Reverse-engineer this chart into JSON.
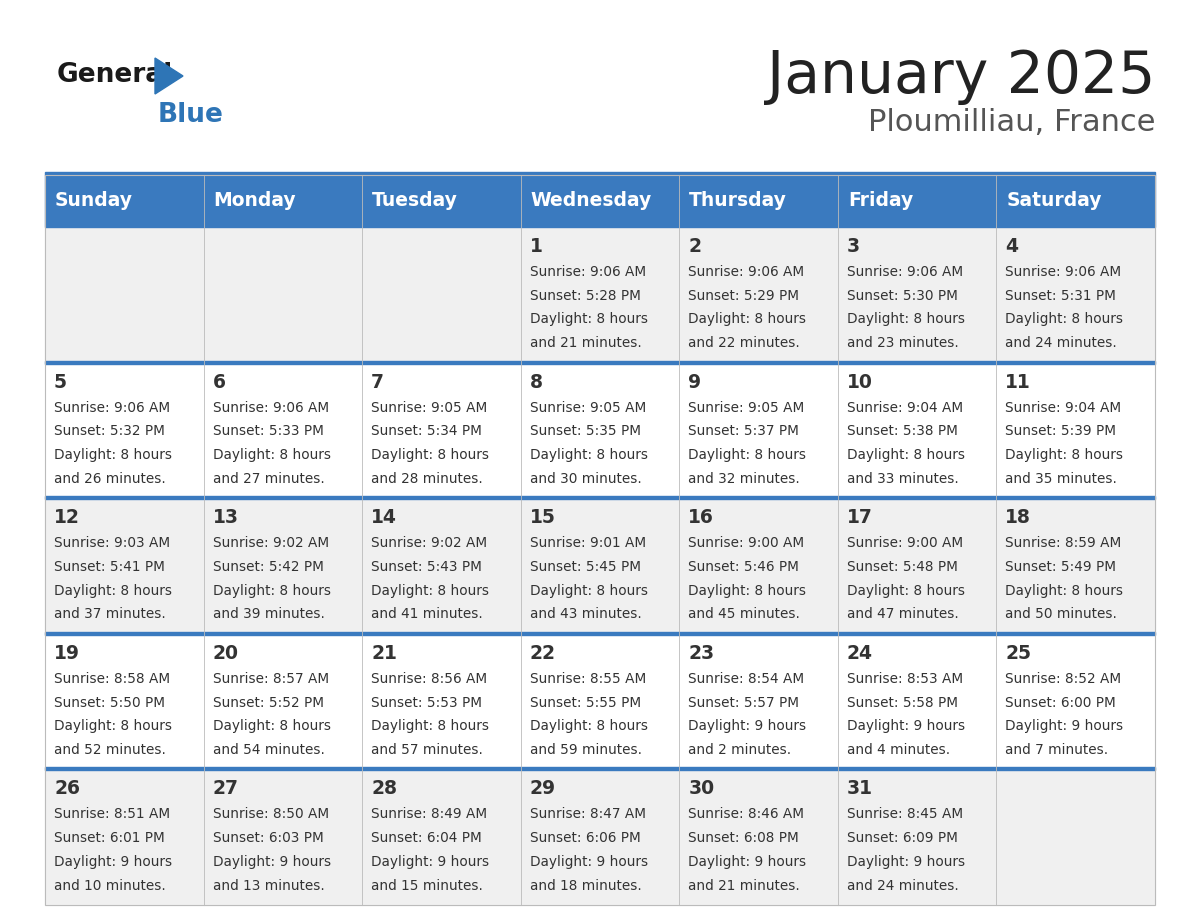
{
  "title": "January 2025",
  "subtitle": "Ploumilliau, France",
  "days_of_week": [
    "Sunday",
    "Monday",
    "Tuesday",
    "Wednesday",
    "Thursday",
    "Friday",
    "Saturday"
  ],
  "header_bg": "#3a7abf",
  "header_text": "#ffffff",
  "row_bg_light": "#f0f0f0",
  "row_bg_white": "#ffffff",
  "cell_text": "#333333",
  "title_color": "#222222",
  "subtitle_color": "#555555",
  "divider_color": "#3a7abf",
  "calendar_data": [
    [
      {
        "day": null
      },
      {
        "day": null
      },
      {
        "day": null
      },
      {
        "day": 1,
        "sunrise": "9:06 AM",
        "sunset": "5:28 PM",
        "daylight_h": "8 hours",
        "daylight_m": "and 21 minutes."
      },
      {
        "day": 2,
        "sunrise": "9:06 AM",
        "sunset": "5:29 PM",
        "daylight_h": "8 hours",
        "daylight_m": "and 22 minutes."
      },
      {
        "day": 3,
        "sunrise": "9:06 AM",
        "sunset": "5:30 PM",
        "daylight_h": "8 hours",
        "daylight_m": "and 23 minutes."
      },
      {
        "day": 4,
        "sunrise": "9:06 AM",
        "sunset": "5:31 PM",
        "daylight_h": "8 hours",
        "daylight_m": "and 24 minutes."
      }
    ],
    [
      {
        "day": 5,
        "sunrise": "9:06 AM",
        "sunset": "5:32 PM",
        "daylight_h": "8 hours",
        "daylight_m": "and 26 minutes."
      },
      {
        "day": 6,
        "sunrise": "9:06 AM",
        "sunset": "5:33 PM",
        "daylight_h": "8 hours",
        "daylight_m": "and 27 minutes."
      },
      {
        "day": 7,
        "sunrise": "9:05 AM",
        "sunset": "5:34 PM",
        "daylight_h": "8 hours",
        "daylight_m": "and 28 minutes."
      },
      {
        "day": 8,
        "sunrise": "9:05 AM",
        "sunset": "5:35 PM",
        "daylight_h": "8 hours",
        "daylight_m": "and 30 minutes."
      },
      {
        "day": 9,
        "sunrise": "9:05 AM",
        "sunset": "5:37 PM",
        "daylight_h": "8 hours",
        "daylight_m": "and 32 minutes."
      },
      {
        "day": 10,
        "sunrise": "9:04 AM",
        "sunset": "5:38 PM",
        "daylight_h": "8 hours",
        "daylight_m": "and 33 minutes."
      },
      {
        "day": 11,
        "sunrise": "9:04 AM",
        "sunset": "5:39 PM",
        "daylight_h": "8 hours",
        "daylight_m": "and 35 minutes."
      }
    ],
    [
      {
        "day": 12,
        "sunrise": "9:03 AM",
        "sunset": "5:41 PM",
        "daylight_h": "8 hours",
        "daylight_m": "and 37 minutes."
      },
      {
        "day": 13,
        "sunrise": "9:02 AM",
        "sunset": "5:42 PM",
        "daylight_h": "8 hours",
        "daylight_m": "and 39 minutes."
      },
      {
        "day": 14,
        "sunrise": "9:02 AM",
        "sunset": "5:43 PM",
        "daylight_h": "8 hours",
        "daylight_m": "and 41 minutes."
      },
      {
        "day": 15,
        "sunrise": "9:01 AM",
        "sunset": "5:45 PM",
        "daylight_h": "8 hours",
        "daylight_m": "and 43 minutes."
      },
      {
        "day": 16,
        "sunrise": "9:00 AM",
        "sunset": "5:46 PM",
        "daylight_h": "8 hours",
        "daylight_m": "and 45 minutes."
      },
      {
        "day": 17,
        "sunrise": "9:00 AM",
        "sunset": "5:48 PM",
        "daylight_h": "8 hours",
        "daylight_m": "and 47 minutes."
      },
      {
        "day": 18,
        "sunrise": "8:59 AM",
        "sunset": "5:49 PM",
        "daylight_h": "8 hours",
        "daylight_m": "and 50 minutes."
      }
    ],
    [
      {
        "day": 19,
        "sunrise": "8:58 AM",
        "sunset": "5:50 PM",
        "daylight_h": "8 hours",
        "daylight_m": "and 52 minutes."
      },
      {
        "day": 20,
        "sunrise": "8:57 AM",
        "sunset": "5:52 PM",
        "daylight_h": "8 hours",
        "daylight_m": "and 54 minutes."
      },
      {
        "day": 21,
        "sunrise": "8:56 AM",
        "sunset": "5:53 PM",
        "daylight_h": "8 hours",
        "daylight_m": "and 57 minutes."
      },
      {
        "day": 22,
        "sunrise": "8:55 AM",
        "sunset": "5:55 PM",
        "daylight_h": "8 hours",
        "daylight_m": "and 59 minutes."
      },
      {
        "day": 23,
        "sunrise": "8:54 AM",
        "sunset": "5:57 PM",
        "daylight_h": "9 hours",
        "daylight_m": "and 2 minutes."
      },
      {
        "day": 24,
        "sunrise": "8:53 AM",
        "sunset": "5:58 PM",
        "daylight_h": "9 hours",
        "daylight_m": "and 4 minutes."
      },
      {
        "day": 25,
        "sunrise": "8:52 AM",
        "sunset": "6:00 PM",
        "daylight_h": "9 hours",
        "daylight_m": "and 7 minutes."
      }
    ],
    [
      {
        "day": 26,
        "sunrise": "8:51 AM",
        "sunset": "6:01 PM",
        "daylight_h": "9 hours",
        "daylight_m": "and 10 minutes."
      },
      {
        "day": 27,
        "sunrise": "8:50 AM",
        "sunset": "6:03 PM",
        "daylight_h": "9 hours",
        "daylight_m": "and 13 minutes."
      },
      {
        "day": 28,
        "sunrise": "8:49 AM",
        "sunset": "6:04 PM",
        "daylight_h": "9 hours",
        "daylight_m": "and 15 minutes."
      },
      {
        "day": 29,
        "sunrise": "8:47 AM",
        "sunset": "6:06 PM",
        "daylight_h": "9 hours",
        "daylight_m": "and 18 minutes."
      },
      {
        "day": 30,
        "sunrise": "8:46 AM",
        "sunset": "6:08 PM",
        "daylight_h": "9 hours",
        "daylight_m": "and 21 minutes."
      },
      {
        "day": 31,
        "sunrise": "8:45 AM",
        "sunset": "6:09 PM",
        "daylight_h": "9 hours",
        "daylight_m": "and 24 minutes."
      },
      {
        "day": null
      }
    ]
  ]
}
